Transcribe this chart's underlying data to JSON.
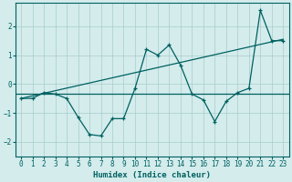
{
  "xlabel": "Humidex (Indice chaleur)",
  "x": [
    0,
    1,
    2,
    3,
    4,
    5,
    6,
    7,
    8,
    9,
    10,
    11,
    12,
    13,
    14,
    15,
    16,
    17,
    18,
    19,
    20,
    21,
    22,
    23
  ],
  "y_zigzag": [
    -0.5,
    -0.5,
    -0.3,
    -0.35,
    -0.5,
    -1.15,
    -1.75,
    -1.8,
    -1.2,
    -1.2,
    -0.15,
    1.2,
    1.0,
    1.35,
    0.65,
    -0.35,
    -0.55,
    -1.3,
    -0.6,
    -0.3,
    -0.15,
    2.55,
    1.5,
    1.5
  ],
  "trend_x": [
    0,
    23
  ],
  "trend_y": [
    -0.5,
    1.55
  ],
  "flat_y": -0.35,
  "bg_color": "#d4ecec",
  "line_color": "#006060",
  "grid_color": "#a8cccc",
  "ylim": [
    -2.5,
    2.8
  ],
  "xlim": [
    -0.5,
    23.5
  ],
  "yticks": [
    -2,
    -1,
    0,
    1,
    2
  ],
  "xticks": [
    0,
    1,
    2,
    3,
    4,
    5,
    6,
    7,
    8,
    9,
    10,
    11,
    12,
    13,
    14,
    15,
    16,
    17,
    18,
    19,
    20,
    21,
    22,
    23
  ]
}
